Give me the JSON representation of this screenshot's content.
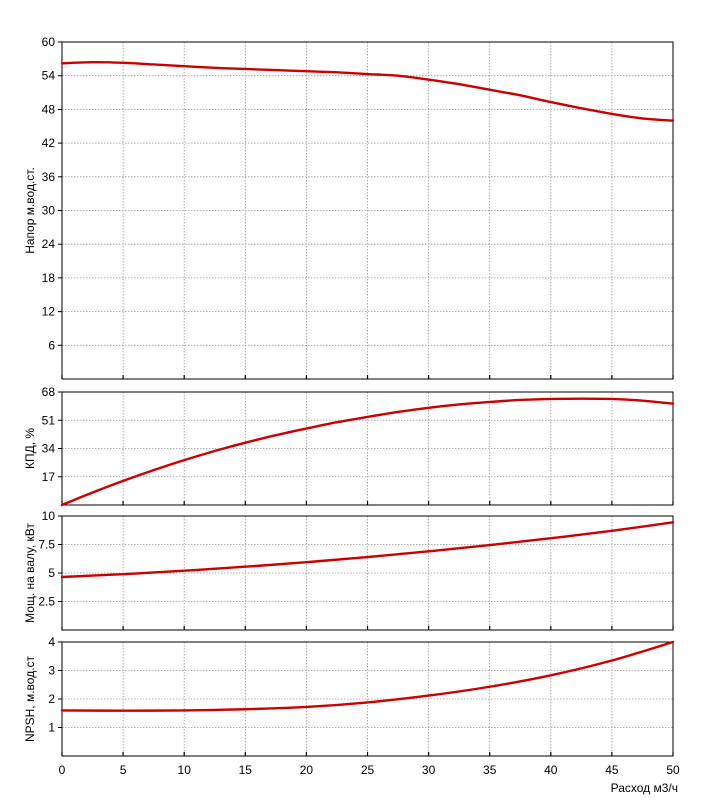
{
  "chart_data": [
    {
      "type": "line",
      "ylabel": "Напор м.вод.ст.",
      "xlim": [
        0,
        50
      ],
      "ylim": [
        0,
        60
      ],
      "yticks": [
        6,
        12,
        18,
        24,
        30,
        36,
        42,
        48,
        54,
        60
      ],
      "grid": true,
      "line_color": "#cc0000",
      "series": [
        {
          "x": [
            0,
            2.5,
            5,
            7.5,
            10,
            12.5,
            15,
            17.5,
            20,
            22.5,
            25,
            27.5,
            30,
            32.5,
            35,
            37.5,
            40,
            42.5,
            45,
            47.5,
            50
          ],
          "y": [
            56.2,
            56.4,
            56.3,
            56.0,
            55.7,
            55.4,
            55.2,
            55.0,
            54.8,
            54.6,
            54.3,
            54.0,
            53.3,
            52.5,
            51.5,
            50.5,
            49.3,
            48.2,
            47.2,
            46.4,
            46.0
          ]
        }
      ]
    },
    {
      "type": "line",
      "ylabel": "КПД, %",
      "xlim": [
        0,
        50
      ],
      "ylim": [
        0,
        68
      ],
      "yticks": [
        17,
        34,
        51,
        68
      ],
      "grid": true,
      "line_color": "#cc0000",
      "series": [
        {
          "x": [
            0,
            2.5,
            5,
            7.5,
            10,
            12.5,
            15,
            17.5,
            20,
            22.5,
            25,
            27.5,
            30,
            32.5,
            35,
            37.5,
            40,
            42.5,
            45,
            47.5,
            50
          ],
          "y": [
            0,
            7.5,
            14.5,
            21,
            27,
            32.5,
            37.5,
            42,
            46,
            49.8,
            53,
            56,
            58.5,
            60.5,
            62,
            63.2,
            63.8,
            64,
            63.8,
            62.8,
            61
          ]
        }
      ]
    },
    {
      "type": "line",
      "ylabel": "Мощ. на валу, кВт",
      "xlim": [
        0,
        50
      ],
      "ylim": [
        0,
        10
      ],
      "yticks": [
        2.5,
        5,
        7.5,
        10
      ],
      "grid": true,
      "line_color": "#cc0000",
      "series": [
        {
          "x": [
            0,
            5,
            10,
            15,
            20,
            25,
            30,
            35,
            40,
            45,
            50
          ],
          "y": [
            4.65,
            4.9,
            5.2,
            5.55,
            5.95,
            6.4,
            6.9,
            7.45,
            8.05,
            8.7,
            9.45
          ]
        }
      ]
    },
    {
      "type": "line",
      "ylabel": "NPSH, м.вод.ст",
      "xlabel": "Расход м3/ч",
      "xlim": [
        0,
        50
      ],
      "xticks": [
        0,
        5,
        10,
        15,
        20,
        25,
        30,
        35,
        40,
        45,
        50
      ],
      "ylim": [
        0,
        4
      ],
      "yticks": [
        1,
        2,
        3,
        4
      ],
      "grid": true,
      "line_color": "#cc0000",
      "series": [
        {
          "x": [
            0,
            5,
            10,
            15,
            20,
            25,
            30,
            35,
            40,
            45,
            50
          ],
          "y": [
            1.6,
            1.59,
            1.6,
            1.64,
            1.72,
            1.88,
            2.12,
            2.43,
            2.83,
            3.35,
            4.0
          ]
        }
      ]
    }
  ]
}
